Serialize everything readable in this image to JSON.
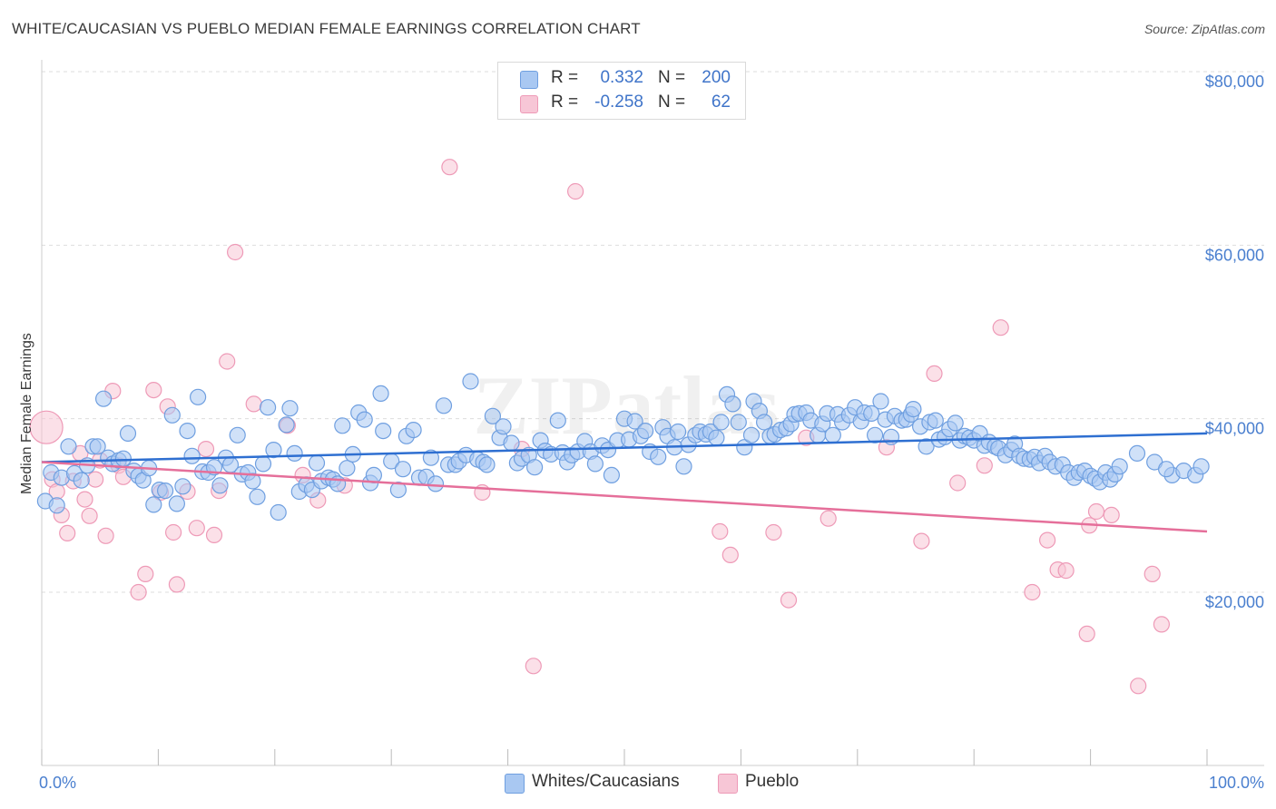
{
  "title": "WHITE/CAUCASIAN VS PUEBLO MEDIAN FEMALE EARNINGS CORRELATION CHART",
  "source": "Source: ZipAtlas.com",
  "watermark": "ZIPatlas",
  "legend": {
    "rows": [
      {
        "r_label": "R =",
        "r_value": "0.332",
        "n_label": "N =",
        "n_value": "200"
      },
      {
        "r_label": "R =",
        "r_value": "-0.258",
        "n_label": "N =",
        "n_value": "62"
      }
    ]
  },
  "bottom_legend": [
    "Whites/Caucasians",
    "Pueblo"
  ],
  "colors": {
    "blue_fill": "#a9c8f2",
    "blue_stroke": "#6f9fe0",
    "blue_line": "#2e6fd1",
    "pink_fill": "#f7c6d6",
    "pink_stroke": "#ee9ab7",
    "pink_line": "#e56f9a",
    "axis_text": "#4a7fcf",
    "grid": "#dddddd"
  },
  "chart_data": {
    "type": "scatter",
    "title": "WHITE/CAUCASIAN VS PUEBLO MEDIAN FEMALE EARNINGS CORRELATION CHART",
    "xlabel": "",
    "ylabel": "Median Female Earnings",
    "xlim": [
      0,
      100
    ],
    "ylim": [
      2000,
      83000
    ],
    "x_tick_labels": [
      "0.0%",
      "100.0%"
    ],
    "y_ticks": [
      20000,
      40000,
      60000,
      80000
    ],
    "y_tick_labels": [
      "$20,000",
      "$40,000",
      "$60,000",
      "$80,000"
    ],
    "grid": true,
    "legend_position": "top-center",
    "series": [
      {
        "name": "Whites/Caucasians",
        "r": 0.332,
        "n": 200,
        "trend": {
          "x": [
            0,
            100
          ],
          "y": [
            35000,
            38300
          ]
        },
        "points": [
          [
            0.3,
            30500
          ],
          [
            0.8,
            33800
          ],
          [
            1.3,
            30000
          ],
          [
            1.7,
            33200
          ],
          [
            2.3,
            36800
          ],
          [
            2.8,
            33700
          ],
          [
            3.4,
            32900
          ],
          [
            3.9,
            34600
          ],
          [
            4.4,
            36800
          ],
          [
            4.8,
            36800
          ],
          [
            5.3,
            42300
          ],
          [
            5.7,
            35500
          ],
          [
            6.1,
            34800
          ],
          [
            6.6,
            35200
          ],
          [
            7.0,
            35400
          ],
          [
            7.4,
            38300
          ],
          [
            7.9,
            34000
          ],
          [
            8.3,
            33400
          ],
          [
            8.7,
            32900
          ],
          [
            9.2,
            34300
          ],
          [
            9.6,
            30100
          ],
          [
            10.1,
            31800
          ],
          [
            10.6,
            31700
          ],
          [
            11.2,
            40400
          ],
          [
            11.6,
            30200
          ],
          [
            12.1,
            32200
          ],
          [
            12.5,
            38600
          ],
          [
            12.9,
            35700
          ],
          [
            13.4,
            42500
          ],
          [
            13.8,
            33900
          ],
          [
            14.3,
            33800
          ],
          [
            14.8,
            34400
          ],
          [
            15.3,
            32300
          ],
          [
            15.8,
            35500
          ],
          [
            16.2,
            34700
          ],
          [
            16.8,
            38100
          ],
          [
            17.2,
            33600
          ],
          [
            17.7,
            33800
          ],
          [
            18.1,
            32800
          ],
          [
            18.5,
            31000
          ],
          [
            19.0,
            34800
          ],
          [
            19.4,
            41300
          ],
          [
            19.9,
            36400
          ],
          [
            20.3,
            29200
          ],
          [
            21.0,
            39300
          ],
          [
            21.3,
            41200
          ],
          [
            21.7,
            36000
          ],
          [
            22.1,
            31600
          ],
          [
            22.7,
            32400
          ],
          [
            23.2,
            31800
          ],
          [
            23.6,
            34900
          ],
          [
            24.0,
            32800
          ],
          [
            24.6,
            33200
          ],
          [
            25.0,
            33000
          ],
          [
            25.4,
            32500
          ],
          [
            25.8,
            39200
          ],
          [
            26.2,
            34300
          ],
          [
            26.7,
            35900
          ],
          [
            27.2,
            40700
          ],
          [
            27.7,
            39900
          ],
          [
            28.2,
            32600
          ],
          [
            28.5,
            33500
          ],
          [
            29.1,
            42900
          ],
          [
            29.3,
            38600
          ],
          [
            30.0,
            35100
          ],
          [
            30.6,
            31800
          ],
          [
            31.0,
            34200
          ],
          [
            31.3,
            38000
          ],
          [
            31.9,
            38700
          ],
          [
            32.4,
            33200
          ],
          [
            33.0,
            33300
          ],
          [
            33.4,
            35500
          ],
          [
            33.8,
            32500
          ],
          [
            34.5,
            41500
          ],
          [
            34.9,
            34700
          ],
          [
            35.5,
            34700
          ],
          [
            35.8,
            35100
          ],
          [
            36.4,
            35800
          ],
          [
            36.8,
            44300
          ],
          [
            37.4,
            35300
          ],
          [
            37.9,
            35000
          ],
          [
            38.2,
            34700
          ],
          [
            38.7,
            40300
          ],
          [
            39.3,
            37800
          ],
          [
            39.6,
            39100
          ],
          [
            40.3,
            37200
          ],
          [
            40.8,
            34900
          ],
          [
            41.2,
            35400
          ],
          [
            41.8,
            35800
          ],
          [
            42.3,
            34400
          ],
          [
            42.8,
            37500
          ],
          [
            43.2,
            36300
          ],
          [
            43.7,
            35900
          ],
          [
            44.3,
            39800
          ],
          [
            44.7,
            36100
          ],
          [
            45.1,
            35000
          ],
          [
            45.5,
            35800
          ],
          [
            46.0,
            36200
          ],
          [
            46.6,
            37400
          ],
          [
            47.1,
            36200
          ],
          [
            47.5,
            34800
          ],
          [
            48.1,
            36900
          ],
          [
            48.6,
            36400
          ],
          [
            48.9,
            33500
          ],
          [
            49.4,
            37500
          ],
          [
            50.0,
            40000
          ],
          [
            50.4,
            37600
          ],
          [
            50.9,
            39700
          ],
          [
            51.4,
            38000
          ],
          [
            51.8,
            38600
          ],
          [
            52.2,
            36200
          ],
          [
            52.9,
            35600
          ],
          [
            53.3,
            39000
          ],
          [
            53.7,
            38000
          ],
          [
            54.3,
            36700
          ],
          [
            54.6,
            38500
          ],
          [
            55.1,
            34500
          ],
          [
            55.5,
            37000
          ],
          [
            56.1,
            38100
          ],
          [
            56.5,
            38500
          ],
          [
            57.0,
            38200
          ],
          [
            57.4,
            38500
          ],
          [
            57.9,
            37800
          ],
          [
            58.3,
            39600
          ],
          [
            58.8,
            42800
          ],
          [
            59.3,
            41700
          ],
          [
            59.8,
            39600
          ],
          [
            60.3,
            36700
          ],
          [
            60.9,
            38100
          ],
          [
            61.1,
            42000
          ],
          [
            61.6,
            40900
          ],
          [
            62.0,
            39600
          ],
          [
            62.5,
            38000
          ],
          [
            62.9,
            38200
          ],
          [
            63.4,
            38700
          ],
          [
            63.9,
            38900
          ],
          [
            64.3,
            39400
          ],
          [
            64.6,
            40500
          ],
          [
            65.0,
            40600
          ],
          [
            65.6,
            40700
          ],
          [
            66.0,
            39800
          ],
          [
            66.6,
            38100
          ],
          [
            67.0,
            39400
          ],
          [
            67.4,
            40600
          ],
          [
            67.9,
            38100
          ],
          [
            68.3,
            40500
          ],
          [
            68.7,
            39600
          ],
          [
            69.3,
            40400
          ],
          [
            69.8,
            41300
          ],
          [
            70.3,
            39700
          ],
          [
            70.6,
            40700
          ],
          [
            71.2,
            40600
          ],
          [
            71.5,
            38100
          ],
          [
            72.0,
            42000
          ],
          [
            72.4,
            39900
          ],
          [
            72.9,
            37900
          ],
          [
            73.2,
            40300
          ],
          [
            73.8,
            39800
          ],
          [
            74.2,
            39900
          ],
          [
            74.6,
            40500
          ],
          [
            74.8,
            41100
          ],
          [
            75.4,
            39100
          ],
          [
            75.9,
            36800
          ],
          [
            76.2,
            39600
          ],
          [
            76.7,
            39800
          ],
          [
            77.0,
            37600
          ],
          [
            77.5,
            37900
          ],
          [
            77.9,
            38800
          ],
          [
            78.4,
            39500
          ],
          [
            78.8,
            37500
          ],
          [
            79.2,
            38000
          ],
          [
            79.6,
            37800
          ],
          [
            80.0,
            37500
          ],
          [
            80.5,
            38300
          ],
          [
            80.9,
            36900
          ],
          [
            81.3,
            37300
          ],
          [
            81.8,
            36800
          ],
          [
            82.1,
            36600
          ],
          [
            82.7,
            35800
          ],
          [
            83.2,
            36400
          ],
          [
            83.5,
            37100
          ],
          [
            83.9,
            35700
          ],
          [
            84.3,
            35400
          ],
          [
            84.8,
            35300
          ],
          [
            85.2,
            35600
          ],
          [
            85.6,
            34900
          ],
          [
            86.1,
            35700
          ],
          [
            86.5,
            35000
          ],
          [
            87.0,
            34500
          ],
          [
            87.6,
            34700
          ],
          [
            88.1,
            33800
          ],
          [
            88.6,
            33200
          ],
          [
            89.0,
            33800
          ],
          [
            89.5,
            34000
          ],
          [
            90.0,
            33400
          ],
          [
            90.4,
            33100
          ],
          [
            90.8,
            32700
          ],
          [
            91.3,
            33800
          ],
          [
            91.7,
            33000
          ],
          [
            92.1,
            33600
          ],
          [
            92.5,
            34500
          ],
          [
            94.0,
            36000
          ],
          [
            95.5,
            35000
          ],
          [
            97.0,
            33500
          ],
          [
            98.0,
            34000
          ],
          [
            99.0,
            33500
          ],
          [
            99.5,
            34500
          ],
          [
            96.5,
            34200
          ]
        ]
      },
      {
        "name": "Pueblo",
        "r": -0.258,
        "n": 62,
        "trend": {
          "x": [
            0,
            100
          ],
          "y": [
            35000,
            27000
          ]
        },
        "points": [
          [
            0.4,
            39000
          ],
          [
            0.9,
            33000
          ],
          [
            1.3,
            31600
          ],
          [
            1.7,
            28900
          ],
          [
            2.2,
            26800
          ],
          [
            2.7,
            32800
          ],
          [
            3.3,
            36000
          ],
          [
            3.7,
            30700
          ],
          [
            4.1,
            28800
          ],
          [
            4.6,
            33000
          ],
          [
            5.0,
            35200
          ],
          [
            5.5,
            26500
          ],
          [
            6.1,
            43200
          ],
          [
            6.6,
            34600
          ],
          [
            7.0,
            33300
          ],
          [
            8.3,
            20000
          ],
          [
            8.9,
            22100
          ],
          [
            9.6,
            43300
          ],
          [
            10.2,
            31500
          ],
          [
            10.8,
            41400
          ],
          [
            11.3,
            26900
          ],
          [
            11.6,
            20900
          ],
          [
            12.5,
            31600
          ],
          [
            13.3,
            27400
          ],
          [
            14.1,
            36500
          ],
          [
            14.8,
            26600
          ],
          [
            15.2,
            31700
          ],
          [
            15.9,
            46600
          ],
          [
            16.6,
            59200
          ],
          [
            18.2,
            41700
          ],
          [
            21.1,
            39200
          ],
          [
            22.4,
            33500
          ],
          [
            23.7,
            30600
          ],
          [
            26.0,
            32300
          ],
          [
            35.0,
            69000
          ],
          [
            37.8,
            31500
          ],
          [
            41.2,
            36500
          ],
          [
            42.2,
            11500
          ],
          [
            45.8,
            66200
          ],
          [
            58.2,
            27000
          ],
          [
            59.1,
            24300
          ],
          [
            62.8,
            26900
          ],
          [
            64.1,
            19100
          ],
          [
            65.6,
            37800
          ],
          [
            67.5,
            28500
          ],
          [
            72.5,
            36700
          ],
          [
            75.5,
            25900
          ],
          [
            76.6,
            45200
          ],
          [
            78.6,
            32600
          ],
          [
            80.9,
            34600
          ],
          [
            82.3,
            50500
          ],
          [
            85.0,
            20000
          ],
          [
            86.3,
            26000
          ],
          [
            87.2,
            22600
          ],
          [
            87.9,
            22500
          ],
          [
            89.7,
            15200
          ],
          [
            89.9,
            27700
          ],
          [
            90.5,
            29300
          ],
          [
            91.8,
            28900
          ],
          [
            94.1,
            9200
          ],
          [
            95.3,
            22100
          ],
          [
            96.1,
            16300
          ]
        ]
      }
    ]
  }
}
